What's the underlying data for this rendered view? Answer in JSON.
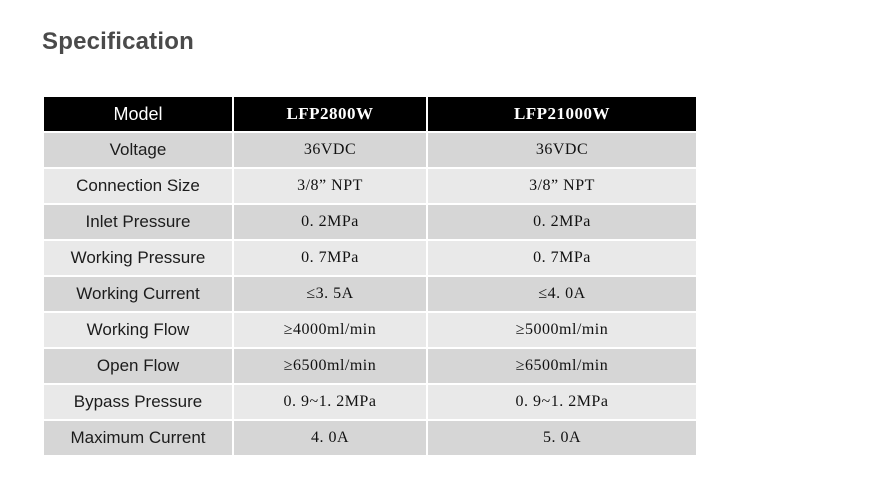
{
  "heading": "Specification",
  "table": {
    "headers": [
      "Model",
      "LFP2800W",
      "LFP21000W"
    ],
    "rows": [
      {
        "label": "Voltage",
        "values": [
          "36VDC",
          "36VDC"
        ]
      },
      {
        "label": "Connection Size",
        "values": [
          "3/8” NPT",
          "3/8” NPT"
        ]
      },
      {
        "label": "Inlet Pressure",
        "values": [
          "0. 2MPa",
          "0. 2MPa"
        ]
      },
      {
        "label": "Working Pressure",
        "values": [
          "0. 7MPa",
          "0. 7MPa"
        ]
      },
      {
        "label": "Working Current",
        "values": [
          "≤3. 5A",
          "≤4. 0A"
        ]
      },
      {
        "label": "Working Flow",
        "values": [
          "≥4000ml/min",
          "≥5000ml/min"
        ]
      },
      {
        "label": "Open Flow",
        "values": [
          "≥6500ml/min",
          "≥6500ml/min"
        ]
      },
      {
        "label": "Bypass Pressure",
        "values": [
          "0. 9~1. 2MPa",
          "0. 9~1. 2MPa"
        ]
      },
      {
        "label": "Maximum Current",
        "values": [
          "4. 0A",
          "5. 0A"
        ]
      }
    ],
    "colors": {
      "header_bg": "#000000",
      "header_text": "#ffffff",
      "row_odd_bg": "#d6d6d6",
      "row_even_bg": "#e9e9e9"
    }
  }
}
